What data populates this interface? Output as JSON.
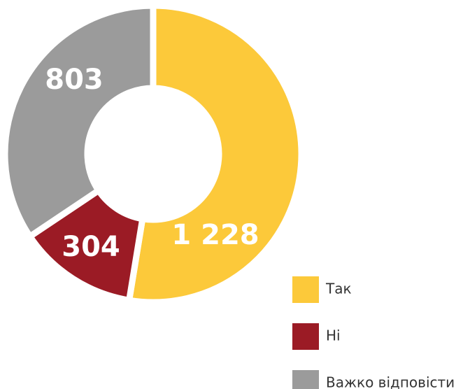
{
  "chart_data": {
    "type": "donut",
    "categories": [
      "Так",
      "Ні",
      "Важко відповісти"
    ],
    "values": [
      1228,
      304,
      803
    ],
    "value_labels": [
      "1 228",
      "304",
      "803"
    ],
    "colors": [
      "#fcc93a",
      "#9b1b25",
      "#9b9b9b"
    ],
    "legend": "bottom-right"
  }
}
